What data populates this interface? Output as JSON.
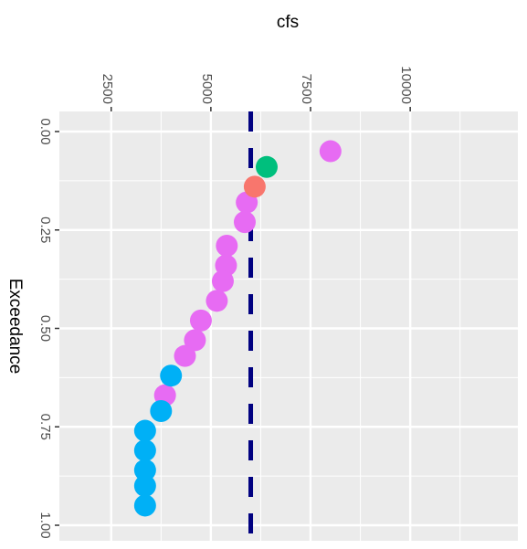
{
  "chart_data": {
    "type": "scatter",
    "xlabel": "cfs",
    "ylabel": "Exceedance",
    "xlim": [
      1200,
      12700
    ],
    "ylim": [
      0,
      1.0
    ],
    "x_ticks": [
      {
        "value": 2500,
        "label": "2500"
      },
      {
        "value": 5000,
        "label": "5000"
      },
      {
        "value": 7500,
        "label": "7500"
      },
      {
        "value": 10000,
        "label": "10000"
      }
    ],
    "y_ticks": [
      {
        "value": 0.0,
        "label": "0.00"
      },
      {
        "value": 0.25,
        "label": "0.25"
      },
      {
        "value": 0.5,
        "label": "0.50"
      },
      {
        "value": 0.75,
        "label": "0.75"
      },
      {
        "value": 1.0,
        "label": "1.00"
      }
    ],
    "reference_line": {
      "x": 6000,
      "style": "dashed",
      "color": "#000080"
    },
    "grid": true,
    "background": "#ebebeb",
    "series": [
      {
        "color": "#e76bf3",
        "points": [
          [
            8000,
            0.05
          ],
          [
            5900,
            0.18
          ],
          [
            5850,
            0.23
          ],
          [
            5400,
            0.29
          ],
          [
            5380,
            0.34
          ],
          [
            5300,
            0.38
          ],
          [
            5150,
            0.43
          ],
          [
            4750,
            0.48
          ],
          [
            4600,
            0.53
          ],
          [
            4350,
            0.57
          ],
          [
            3850,
            0.67
          ]
        ]
      },
      {
        "color": "#00bf7d",
        "points": [
          [
            6400,
            0.09
          ]
        ]
      },
      {
        "color": "#f8766d",
        "points": [
          [
            6100,
            0.14
          ]
        ]
      },
      {
        "color": "#00b0f6",
        "points": [
          [
            4000,
            0.62
          ],
          [
            3750,
            0.71
          ],
          [
            3350,
            0.76
          ],
          [
            3350,
            0.81
          ],
          [
            3350,
            0.86
          ],
          [
            3350,
            0.9
          ],
          [
            3350,
            0.95
          ]
        ]
      }
    ]
  }
}
